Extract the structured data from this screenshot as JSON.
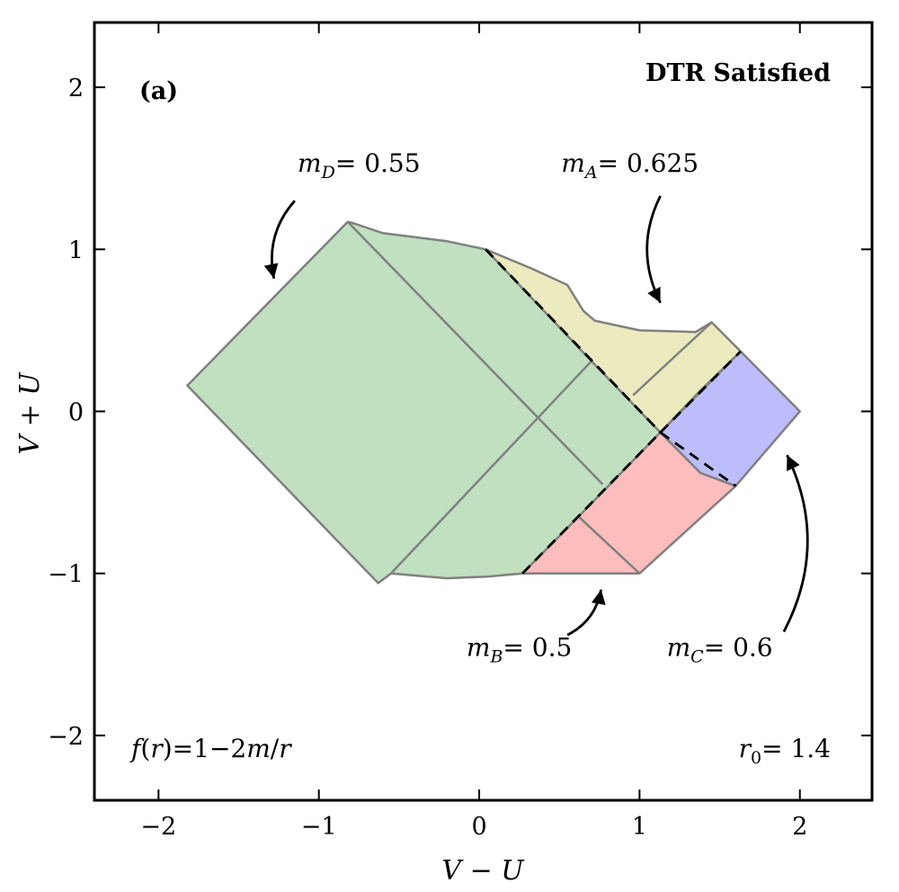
{
  "panel_label": "(a)",
  "condition": "DTR Satisfied",
  "axes": {
    "xlabel": "V − U",
    "ylabel": "V + U",
    "xlim": [
      -2.4,
      2.45
    ],
    "ylim": [
      -2.4,
      2.4
    ],
    "xticks": [
      {
        "value": -2,
        "label": "−2"
      },
      {
        "value": -1,
        "label": "−1"
      },
      {
        "value": 0,
        "label": "0"
      },
      {
        "value": 1,
        "label": "1"
      },
      {
        "value": 2,
        "label": "2"
      }
    ],
    "yticks": [
      {
        "value": -2,
        "label": "−2"
      },
      {
        "value": -1,
        "label": "−1"
      },
      {
        "value": 0,
        "label": "0"
      },
      {
        "value": 1,
        "label": "1"
      },
      {
        "value": 2,
        "label": "2"
      }
    ]
  },
  "formula": {
    "f": "f",
    "r": "r",
    "open": "(",
    "close": ")",
    "eq": "=",
    "one": "1",
    "minus": "−",
    "two": "2",
    "m": "m",
    "slash": "/",
    "r2": "r"
  },
  "r0": {
    "r": "r",
    "sub": "0",
    "value": "= 1.4"
  },
  "masses": {
    "D": {
      "m": "m",
      "sub": "D",
      "value": "= 0.55",
      "text_at": [
        -0.75,
        1.48
      ],
      "arrow": [
        [
          -1.15,
          1.3
        ],
        [
          -1.28,
          0.82
        ]
      ]
    },
    "A": {
      "m": "m",
      "sub": "A",
      "value": "= 0.625",
      "text_at": [
        0.94,
        1.48
      ],
      "arrow": [
        [
          1.13,
          1.33
        ],
        [
          1.13,
          0.67
        ]
      ]
    },
    "B": {
      "m": "m",
      "sub": "B",
      "value": "= 0.5",
      "text_at": [
        0.25,
        -1.51
      ],
      "arrow": [
        [
          0.55,
          -1.38
        ],
        [
          0.76,
          -1.1
        ]
      ]
    },
    "C": {
      "m": "m",
      "sub": "C",
      "value": "= 0.6",
      "text_at": [
        1.5,
        -1.51
      ],
      "arrow": [
        [
          1.9,
          -1.36
        ],
        [
          1.92,
          -0.27
        ]
      ]
    }
  },
  "regions": {
    "colors": {
      "D": "#c0e0c0",
      "A": "#ecebbf",
      "B": "#fdbdbd",
      "C": "#bdbdfb",
      "edge": "#808080"
    },
    "D_outline": [
      [
        -0.82,
        1.17
      ],
      [
        -1.82,
        0.16
      ],
      [
        -0.63,
        -1.06
      ],
      [
        -0.55,
        -1.0
      ],
      [
        -0.2,
        -1.03
      ],
      [
        0.05,
        -1.02
      ],
      [
        0.27,
        -1.0
      ],
      [
        0.62,
        -0.65
      ],
      [
        1.13,
        -0.13
      ],
      [
        0.7,
        0.31
      ],
      [
        0.04,
        1.0
      ],
      [
        -0.2,
        1.05
      ],
      [
        -0.6,
        1.1
      ],
      [
        -0.78,
        1.16
      ]
    ],
    "A_outline": [
      [
        0.04,
        1.0
      ],
      [
        0.33,
        0.88
      ],
      [
        0.55,
        0.78
      ],
      [
        0.65,
        0.62
      ],
      [
        0.72,
        0.56
      ],
      [
        1.0,
        0.5
      ],
      [
        1.35,
        0.49
      ],
      [
        1.45,
        0.55
      ],
      [
        1.63,
        0.37
      ],
      [
        1.38,
        0.13
      ],
      [
        1.13,
        -0.13
      ],
      [
        0.7,
        0.31
      ]
    ],
    "B_outline": [
      [
        0.27,
        -1.0
      ],
      [
        0.62,
        -0.65
      ],
      [
        1.13,
        -0.13
      ],
      [
        1.38,
        -0.38
      ],
      [
        1.6,
        -0.46
      ],
      [
        1.0,
        -1.0
      ],
      [
        0.95,
        -1.0
      ]
    ],
    "C_outline": [
      [
        1.13,
        -0.13
      ],
      [
        1.63,
        0.37
      ],
      [
        2.0,
        0.0
      ],
      [
        1.6,
        -0.46
      ],
      [
        1.38,
        -0.38
      ]
    ],
    "inner_lines": [
      [
        [
          -0.82,
          1.17
        ],
        [
          0.77,
          -0.45
        ]
      ],
      [
        [
          -0.55,
          -1.0
        ],
        [
          0.7,
          0.31
        ]
      ],
      [
        [
          0.62,
          -0.65
        ],
        [
          1.0,
          -1.0
        ]
      ],
      [
        [
          0.96,
          0.1
        ],
        [
          1.45,
          0.55
        ]
      ]
    ],
    "dashed": [
      [
        [
          0.04,
          1.0
        ],
        [
          1.13,
          -0.13
        ]
      ],
      [
        [
          0.27,
          -1.0
        ],
        [
          1.13,
          -0.13
        ]
      ],
      [
        [
          1.13,
          -0.13
        ],
        [
          1.63,
          0.37
        ]
      ],
      [
        [
          1.13,
          -0.13
        ],
        [
          1.6,
          -0.46
        ]
      ]
    ]
  }
}
